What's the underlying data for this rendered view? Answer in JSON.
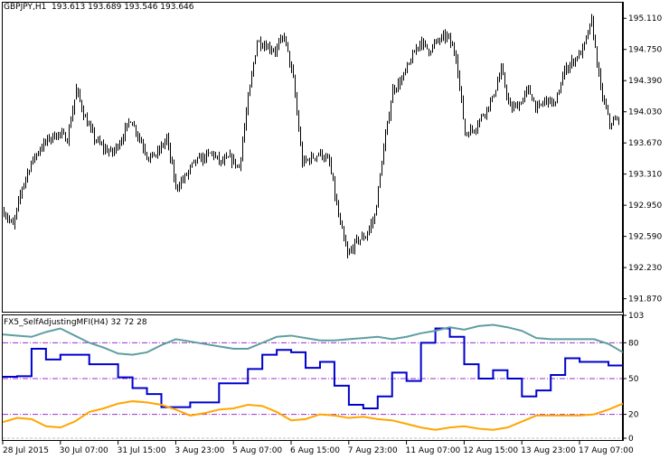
{
  "header": {
    "symbol": "GBPJPY,H1",
    "ohlc": "193.613 193.689 193.546 193.646"
  },
  "indicator": {
    "label": "FX5_SelfAdjustingMFI(H4) 32 72 28"
  },
  "colors": {
    "bars": "#000000",
    "mfi": "#0000cd",
    "upper": "#5f9ea0",
    "lower": "#ffa500",
    "levels": "#9932cc",
    "zero": "#c0c0c0"
  },
  "chart_data": [
    {
      "type": "ohlc",
      "title": "GBPJPY,H1",
      "timeframe": "H1",
      "bars_per_sample": 5,
      "close": [
        192.876,
        192.706,
        193.158,
        193.44,
        193.609,
        193.722,
        193.778,
        193.722,
        194.286,
        193.948,
        193.722,
        193.609,
        193.553,
        193.722,
        193.948,
        193.722,
        193.496,
        193.553,
        193.722,
        193.158,
        193.271,
        193.44,
        193.496,
        193.553,
        193.44,
        193.496,
        193.384,
        194.173,
        194.85,
        194.794,
        194.738,
        194.907,
        194.399,
        193.44,
        193.496,
        193.553,
        193.44,
        192.819,
        192.368,
        192.537,
        192.594,
        192.819,
        193.609,
        194.286,
        194.399,
        194.625,
        194.85,
        194.738,
        194.85,
        194.907,
        194.681,
        193.778,
        193.835,
        194.004,
        194.173,
        194.512,
        194.06,
        194.117,
        194.286,
        194.06,
        194.173,
        194.117,
        194.512,
        194.625,
        194.738,
        195.076,
        194.286,
        193.891,
        193.948
      ],
      "yticks": [
        "195.110",
        "194.750",
        "194.390",
        "194.030",
        "193.670",
        "193.310",
        "192.950",
        "192.590",
        "192.230",
        "191.870"
      ],
      "ylim": [
        191.72,
        195.29
      ],
      "xticks": [
        "28 Jul 2015",
        "30 Jul 07:00",
        "31 Jul 15:00",
        "3 Aug 23:00",
        "5 Aug 07:00",
        "6 Aug 15:00",
        "7 Aug 23:00",
        "11 Aug 07:00",
        "12 Aug 15:00",
        "13 Aug 23:00",
        "17 Aug 07:00"
      ]
    },
    {
      "type": "line",
      "title": "FX5_SelfAdjustingMFI(H4) 32 72 28",
      "ylim": [
        0,
        103
      ],
      "yticks": [
        "103",
        "80",
        "50",
        "20",
        "0"
      ],
      "levels": [
        80,
        50,
        20
      ],
      "series": [
        {
          "key": "mfi",
          "style": "step",
          "values": [
            51.5,
            52,
            75,
            66,
            70,
            70,
            62,
            62,
            51,
            42,
            37,
            26,
            26,
            30,
            30,
            46,
            46,
            58,
            70,
            74,
            72,
            59,
            64,
            44,
            28,
            25,
            35,
            55,
            48,
            80,
            92,
            85,
            62,
            50,
            57,
            50,
            35,
            40,
            53,
            67,
            64,
            64,
            61,
            61
          ]
        },
        {
          "key": "upper",
          "style": "line",
          "values": [
            87,
            86,
            85,
            89,
            92,
            86,
            80,
            76,
            71,
            70,
            72,
            78,
            83,
            81,
            79,
            77,
            75,
            75,
            80,
            85,
            86,
            84,
            82,
            82,
            83,
            84,
            85,
            83,
            85,
            88,
            90,
            93,
            91,
            94,
            95,
            93,
            90,
            84,
            83,
            83,
            83,
            83,
            79,
            72
          ]
        },
        {
          "key": "lower",
          "style": "line",
          "values": [
            13.5,
            17,
            16,
            10,
            9,
            14,
            22,
            25,
            29,
            31,
            30,
            28,
            24,
            19,
            21,
            24,
            25,
            28,
            27,
            22,
            15,
            16,
            20,
            19,
            17,
            18,
            16,
            15,
            12,
            9,
            7,
            9,
            10,
            8,
            7,
            9,
            14,
            19,
            19,
            19,
            19,
            20,
            24,
            29
          ]
        }
      ]
    }
  ]
}
